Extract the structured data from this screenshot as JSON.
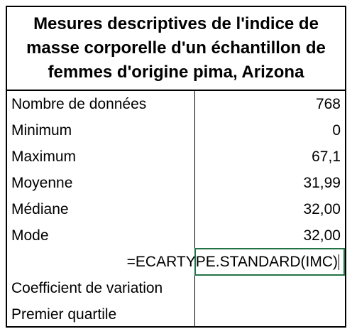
{
  "title": "Mesures descriptives de l'indice de masse corporelle d'un échantillon de femmes d'origine pima, Arizona",
  "rows": [
    {
      "label": "Nombre de données",
      "value": "768"
    },
    {
      "label": "Minimum",
      "value": "0"
    },
    {
      "label": "Maximum",
      "value": "67,1"
    },
    {
      "label": "Moyenne",
      "value": "31,99"
    },
    {
      "label": "Médiane",
      "value": "32,00"
    },
    {
      "label": "Mode",
      "value": "32,00"
    }
  ],
  "formula_row": {
    "formula": "=ECARTYPE.STANDARD(IMC)"
  },
  "rows_after": [
    {
      "label": "Coefficient de variation",
      "value": ""
    },
    {
      "label": "Premier quartile",
      "value": ""
    }
  ],
  "colors": {
    "active_cell_border": "#217346",
    "grid": "#000000"
  }
}
